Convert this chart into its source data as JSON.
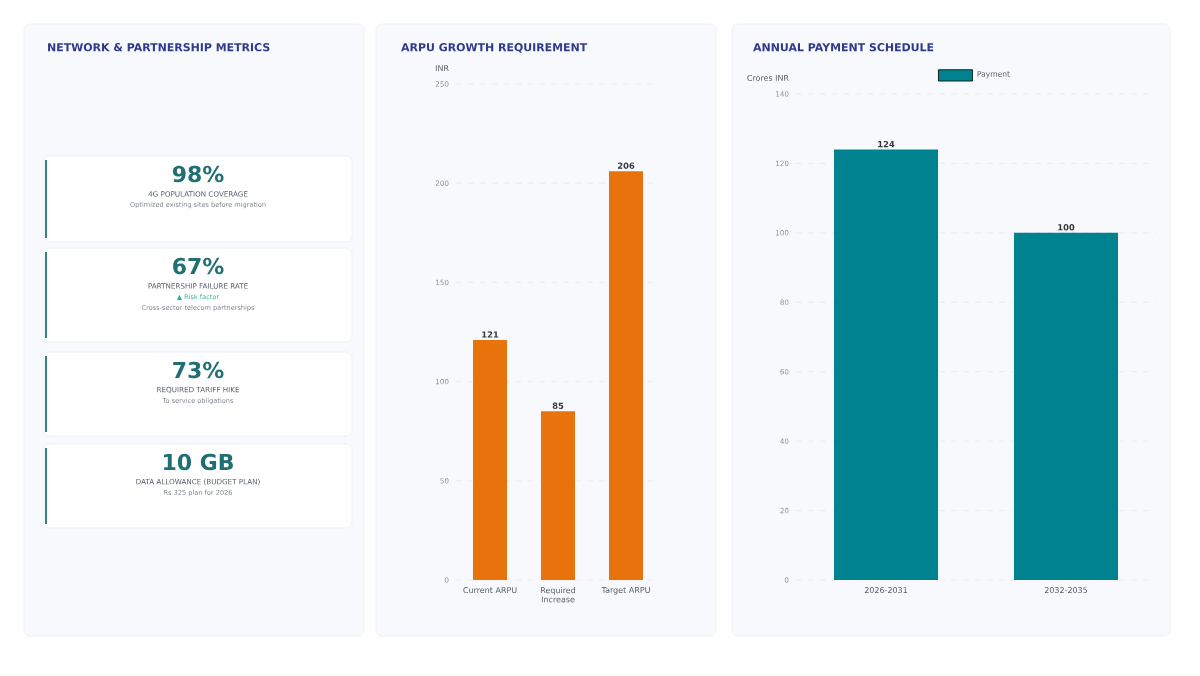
{
  "chart_data": [
    {
      "type": "other",
      "title": "NETWORK & PARTNERSHIP METRICS"
    },
    {
      "type": "other",
      "title": "98%",
      "subtitle": "4G POPULATION COVERAGE",
      "annotations": [
        "Optimized existing sites before migration"
      ]
    },
    {
      "type": "other",
      "title": "67%",
      "subtitle": "PARTNERSHIP FAILURE RATE",
      "annotations": [
        "▲ Risk factor",
        "Cross-sector telecom partnerships"
      ]
    },
    {
      "type": "other",
      "title": "73%",
      "subtitle": "REQUIRED TARIFF HIKE",
      "annotations": [
        "To service obligations"
      ]
    },
    {
      "type": "other",
      "title": "10 GB",
      "subtitle": "DATA ALLOWANCE (BUDGET PLAN)",
      "annotations": [
        "Rs 325 plan for 2026"
      ]
    },
    {
      "type": "bar",
      "title": "ARPU GROWTH REQUIREMENT",
      "ylabel": "INR",
      "categories": [
        "Current ARPU",
        "Required Increase",
        "Target ARPU"
      ],
      "series": [
        {
          "color": "#e8730c",
          "values": [
            121,
            85,
            206
          ]
        }
      ],
      "ylim": [
        0,
        250
      ],
      "yticks": [
        0,
        50,
        100,
        150,
        200,
        250
      ],
      "grid": "y",
      "data_labels": true
    },
    {
      "type": "bar",
      "title": "ANNUAL PAYMENT SCHEDULE",
      "ylabel": "Crores INR",
      "categories": [
        "2026-2031",
        "2032-2035"
      ],
      "series": [
        {
          "name": "Payment",
          "color": "#00838f",
          "values": [
            124,
            100
          ]
        }
      ],
      "ylim": [
        0,
        140
      ],
      "yticks": [
        0,
        20,
        40,
        60,
        80,
        100,
        120,
        140
      ],
      "grid": "y",
      "data_labels": true,
      "legend": "top"
    }
  ]
}
